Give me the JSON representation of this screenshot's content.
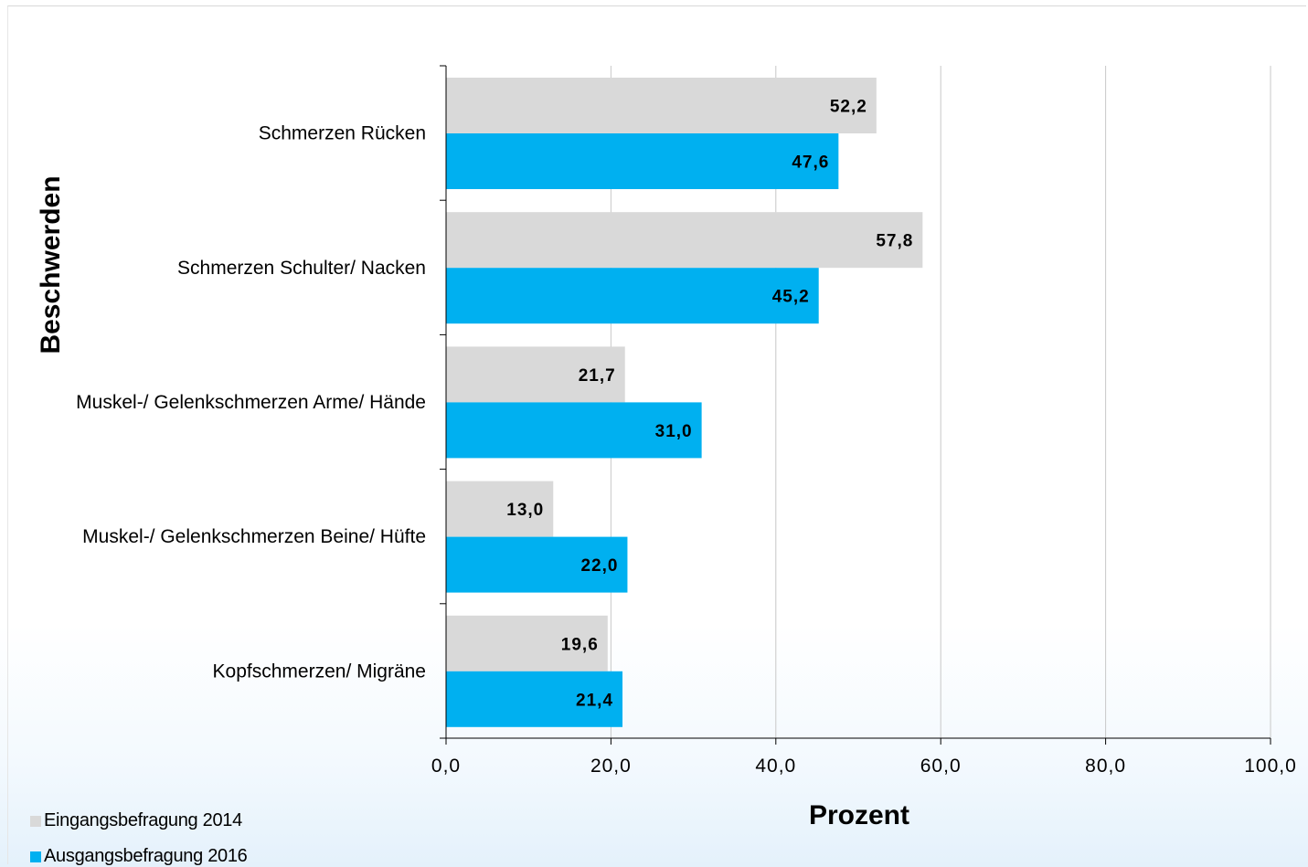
{
  "chart_data": {
    "type": "bar",
    "orientation": "horizontal",
    "categories": [
      "Schmerzen Rücken",
      "Schmerzen Schulter/ Nacken",
      "Muskel-/ Gelenkschmerzen Arme/ Hände",
      "Muskel-/ Gelenkschmerzen Beine/ Hüfte",
      "Kopfschmerzen/ Migräne"
    ],
    "series": [
      {
        "name": "Eingangsbefragung 2014",
        "values": [
          52.2,
          57.8,
          21.7,
          13.0,
          19.6
        ],
        "labels": [
          "52,2",
          "57,8",
          "21,7",
          "13,0",
          "19,6"
        ],
        "color": "#d9d9d9"
      },
      {
        "name": "Ausgangsbefragung 2016",
        "values": [
          47.6,
          45.2,
          31.0,
          22.0,
          21.4
        ],
        "labels": [
          "47,6",
          "45,2",
          "31,0",
          "22,0",
          "21,4"
        ],
        "color": "#00b0f0"
      }
    ],
    "xlabel": "Prozent",
    "ylabel": "Beschwerden",
    "xlim": [
      0,
      100
    ],
    "xticks": [
      0,
      20,
      40,
      60,
      80,
      100
    ],
    "xtick_labels": [
      "0,0",
      "20,0",
      "40,0",
      "60,0",
      "80,0",
      "100,0"
    ],
    "grid": "vertical",
    "legend_position": "bottom-left"
  }
}
